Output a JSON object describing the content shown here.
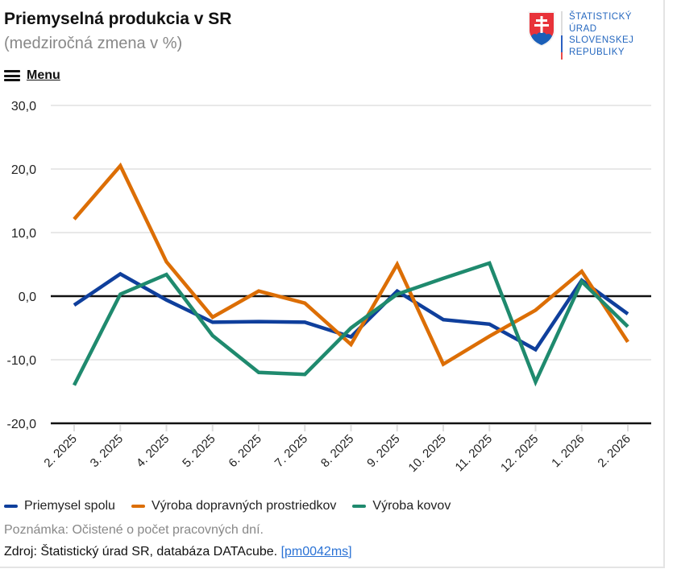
{
  "header": {
    "title": "Priemyselná produkcia v SR",
    "subtitle": "(medziročná zmena v %)",
    "menu_label": "Menu",
    "logo_lines": [
      "ŠTATISTICKÝ",
      "ÚRAD",
      "SLOVENSKEJ",
      "REPUBLIKY"
    ]
  },
  "footer": {
    "note": "Poznámka: Očistené o počet pracovných dní.",
    "source_prefix": "Zdroj: Štatistický úrad SR, databáza DATAcube. ",
    "source_link": "[pm0042ms]"
  },
  "chart_data": {
    "type": "line",
    "title": "Priemyselná produkcia v SR",
    "subtitle": "(medziročná zmena v %)",
    "xlabel": "",
    "ylabel": "",
    "ylim": [
      -20,
      30
    ],
    "yticks": [
      30,
      20,
      10,
      0,
      -10,
      -20
    ],
    "ytick_labels": [
      "30,0",
      "20,0",
      "10,0",
      "0,0",
      "-10,0",
      "-20,0"
    ],
    "grid": true,
    "legend_position": "bottom-left",
    "categories": [
      "2. 2025",
      "3. 2025",
      "4. 2025",
      "5. 2025",
      "6. 2025",
      "7. 2025",
      "8. 2025",
      "9. 2025",
      "10. 2025",
      "11. 2025",
      "12. 2025",
      "1. 2026",
      "2. 2026"
    ],
    "series": [
      {
        "name": "Priemysel spolu",
        "color": "#0f3f9c",
        "values": [
          -1.4,
          3.5,
          -0.6,
          -4.1,
          -4.0,
          -4.1,
          -6.4,
          0.8,
          -3.7,
          -4.4,
          -8.4,
          2.5,
          -2.8
        ]
      },
      {
        "name": "Výroba dopravných prostriedkov",
        "color": "#dc6e05",
        "values": [
          12.1,
          20.5,
          5.4,
          -3.3,
          0.8,
          -1.1,
          -7.6,
          5.0,
          -10.7,
          -6.3,
          -2.2,
          3.9,
          -7.2
        ]
      },
      {
        "name": "Výroba kovov",
        "color": "#1f8a6e",
        "values": [
          -14.0,
          0.3,
          3.4,
          -6.2,
          -12.0,
          -12.3,
          -5.0,
          0.3,
          2.8,
          5.2,
          -13.5,
          2.3,
          -4.8
        ]
      }
    ]
  }
}
